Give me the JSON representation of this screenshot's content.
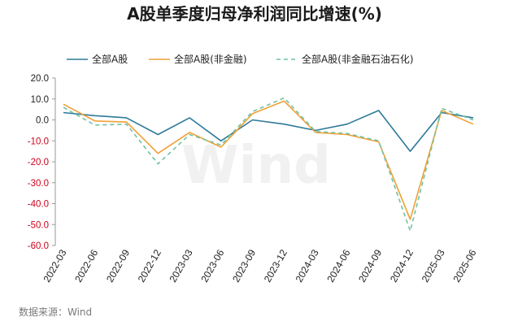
{
  "chart_data": {
    "type": "line",
    "title": "A股单季度归母净利润同比增速(%)",
    "categories": [
      "2022-03",
      "2022-06",
      "2022-09",
      "2022-12",
      "2023-03",
      "2023-06",
      "2023-09",
      "2023-12",
      "2024-03",
      "2024-06",
      "2024-09",
      "2024-12",
      "2025-03",
      "2025-06"
    ],
    "ylim": [
      -60,
      20
    ],
    "yticks": [
      "20.0",
      "10.0",
      "0.0",
      "-10.0",
      "-20.0",
      "-30.0",
      "-40.0",
      "-50.0",
      "-60.0"
    ],
    "negative_tick_color": "#d0021b",
    "grid": false,
    "legend_position": "top",
    "series": [
      {
        "name": "全部A股",
        "color": "#2e7a99",
        "style": "solid",
        "values": [
          3.5,
          2.0,
          1.0,
          -7.0,
          1.0,
          -10.0,
          0.0,
          -2.0,
          -5.0,
          -2.0,
          4.5,
          -15.0,
          3.5,
          1.0
        ]
      },
      {
        "name": "全部A股(非金融)",
        "color": "#f0a035",
        "style": "solid",
        "values": [
          7.5,
          -0.5,
          -1.0,
          -16.0,
          -6.0,
          -13.0,
          3.0,
          9.0,
          -6.0,
          -7.0,
          -10.5,
          -47.5,
          4.5,
          -2.0
        ]
      },
      {
        "name": "全部A股(非金融石油石化)",
        "color": "#6fc2a2",
        "style": "dashed",
        "values": [
          6.0,
          -2.5,
          -2.0,
          -21.0,
          -7.0,
          -12.0,
          4.0,
          10.5,
          -5.5,
          -6.5,
          -10.0,
          -53.0,
          5.5,
          0.0
        ]
      }
    ]
  },
  "watermark": "Wind",
  "source": "数据来源：Wind"
}
